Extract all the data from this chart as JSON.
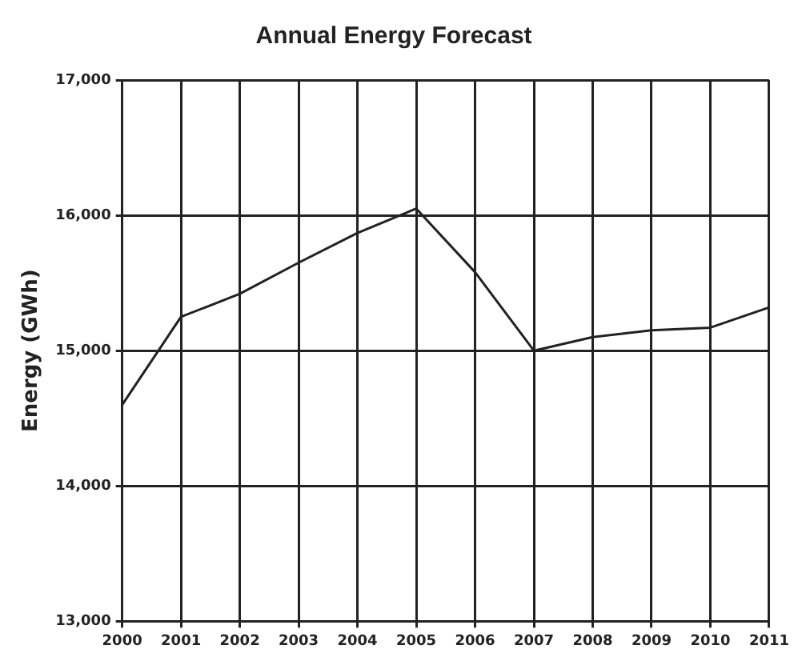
{
  "chart_data": {
    "type": "line",
    "title": "Annual Energy Forecast",
    "ylabel": "Energy (GWh)",
    "categories": [
      "2000",
      "2001",
      "2002",
      "2003",
      "2004",
      "2005",
      "2006",
      "2007",
      "2008",
      "2009",
      "2010",
      "2011"
    ],
    "series": [
      {
        "color": "#222222",
        "values": [
          14600,
          15250,
          15420,
          15650,
          15870,
          16050,
          15580,
          15000,
          15100,
          15150,
          15170,
          15320
        ]
      }
    ],
    "ylim": [
      13000,
      17000
    ],
    "yticks": [
      {
        "value": 13000,
        "label": "13,000"
      },
      {
        "value": 14000,
        "label": "14,000"
      },
      {
        "value": 15000,
        "label": "15,000"
      },
      {
        "value": 16000,
        "label": "16,000"
      },
      {
        "value": 17000,
        "label": "17,000"
      }
    ],
    "grid": true,
    "legend": false,
    "marker": "none",
    "line_style": "solid"
  }
}
